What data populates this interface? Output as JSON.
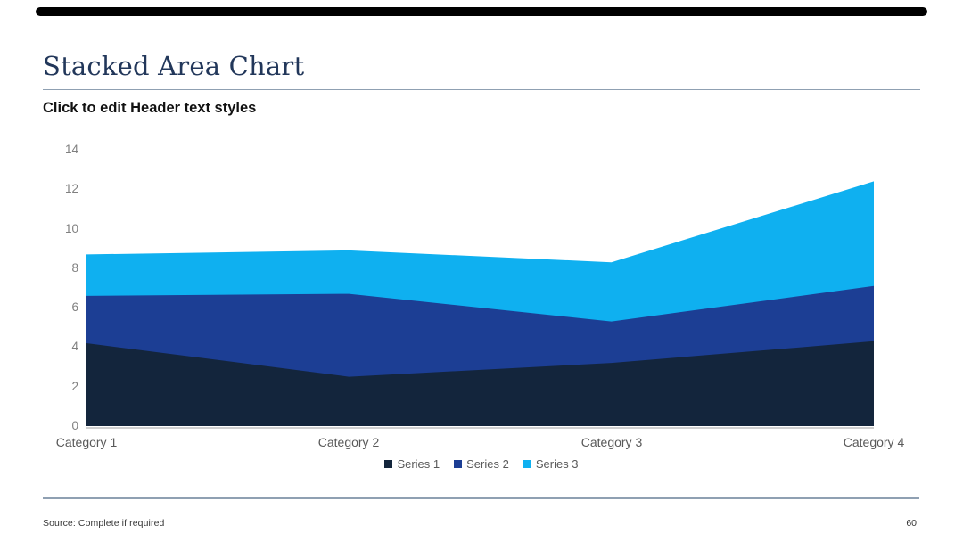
{
  "slide": {
    "title": "Stacked Area Chart",
    "header_text": "Click to edit Header text styles",
    "source_note": "Source: Complete if required",
    "page_number": "60"
  },
  "chart_data": {
    "type": "area",
    "stacked": true,
    "title": "",
    "xlabel": "",
    "ylabel": "",
    "categories": [
      "Category 1",
      "Category 2",
      "Category 3",
      "Category 4"
    ],
    "series": [
      {
        "name": "Series 1",
        "color": "#13253C",
        "values": [
          4.2,
          2.5,
          3.2,
          4.3
        ]
      },
      {
        "name": "Series 2",
        "color": "#1C3E94",
        "values": [
          2.4,
          4.2,
          2.1,
          2.8
        ]
      },
      {
        "name": "Series 3",
        "color": "#0FB0F0",
        "values": [
          2.1,
          2.2,
          3.0,
          5.3
        ]
      }
    ],
    "stacked_totals": [
      8.7,
      8.9,
      8.3,
      12.4
    ],
    "ylim": [
      0,
      14
    ],
    "yticks": [
      0,
      2,
      4,
      6,
      8,
      10,
      12,
      14
    ],
    "grid": false,
    "legend_position": "bottom-center",
    "axis_color": "#D0D0D0",
    "tick_label_color": "#7F7F7F"
  }
}
